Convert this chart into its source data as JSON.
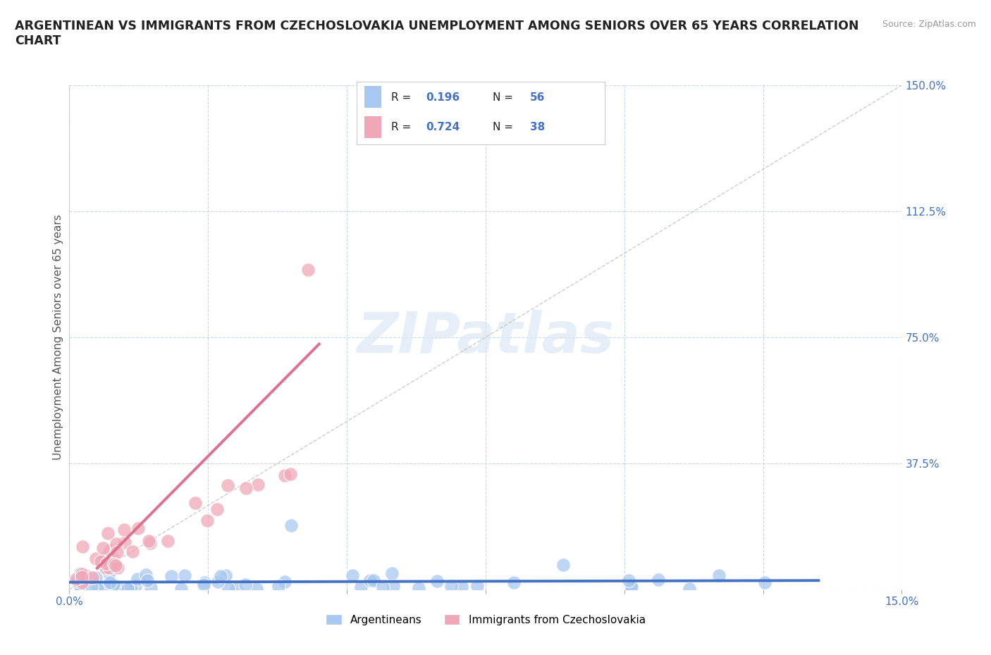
{
  "title": "ARGENTINEAN VS IMMIGRANTS FROM CZECHOSLOVAKIA UNEMPLOYMENT AMONG SENIORS OVER 65 YEARS CORRELATION\nCHART",
  "ylabel": "Unemployment Among Seniors over 65 years",
  "source": "Source: ZipAtlas.com",
  "xlim": [
    0.0,
    0.15
  ],
  "ylim": [
    0.0,
    1.5
  ],
  "yticks_right": [
    0.0,
    0.375,
    0.75,
    1.125,
    1.5
  ],
  "yticklabels_right": [
    "",
    "37.5%",
    "75.0%",
    "112.5%",
    "150.0%"
  ],
  "grid_color": "#c8d8e8",
  "background_color": "#ffffff",
  "series1_color": "#a8c8f0",
  "series2_color": "#f0a8b8",
  "series1_label": "Argentineans",
  "series2_label": "Immigrants from Czechoslovakia",
  "series1_R": "0.196",
  "series1_N": "56",
  "series2_R": "0.724",
  "series2_N": "38",
  "legend_R_color": "#4472c4",
  "legend_N_color": "#4472c4",
  "diag_line_color": "#c0c0c0",
  "trend1_color": "#4472c4",
  "trend2_color": "#e07090",
  "tick_color": "#4472c4",
  "title_color": "#222222"
}
